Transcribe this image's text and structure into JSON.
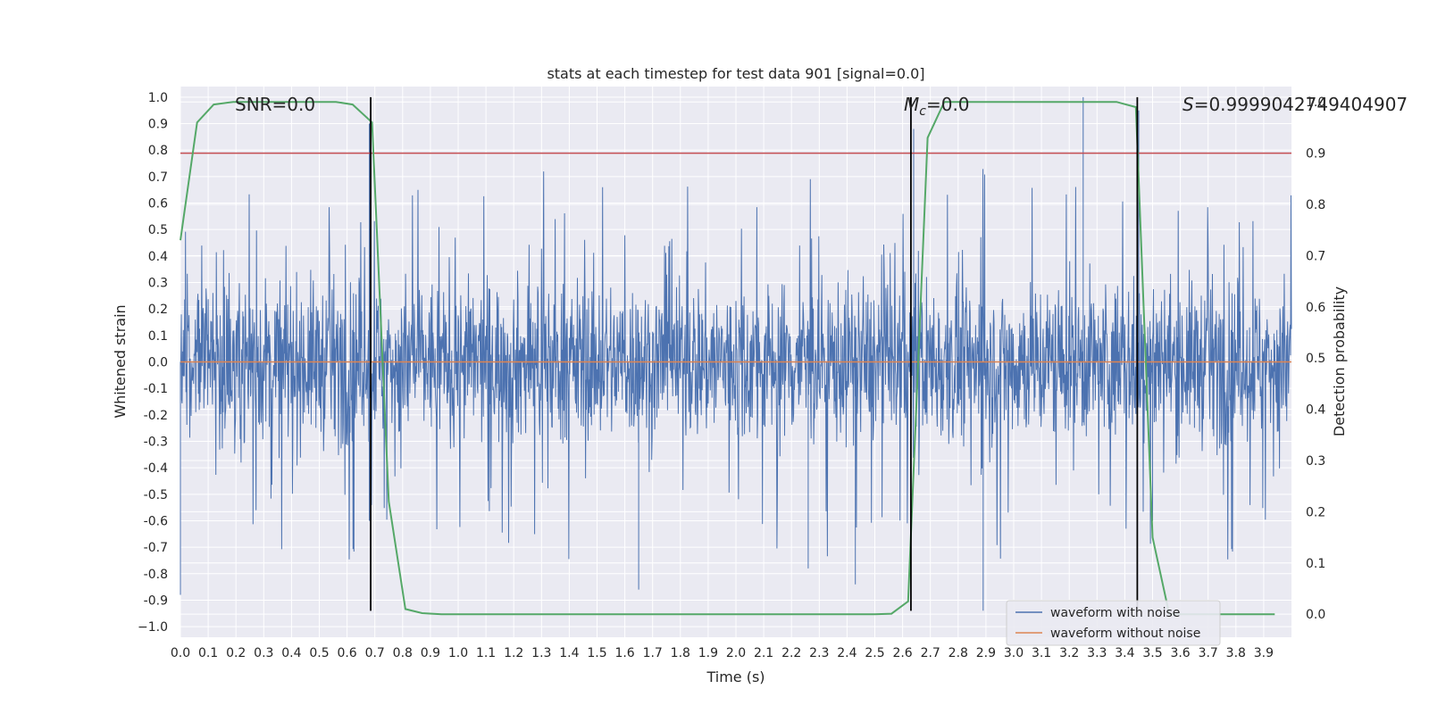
{
  "chart_data": {
    "type": "line",
    "title": "stats at each timestep for test data 901 [signal=0.0]",
    "xlabel": "Time (s)",
    "ylabel": "Whitened strain",
    "y2label": "Detection probability",
    "xlim": [
      0.0,
      4.0
    ],
    "ylim": [
      -1.04,
      1.04
    ],
    "y2lim": [
      -0.045,
      1.03
    ],
    "x_ticks": [
      "0.0",
      "0.1",
      "0.2",
      "0.3",
      "0.4",
      "0.5",
      "0.6",
      "0.7",
      "0.8",
      "0.9",
      "1.0",
      "1.1",
      "1.2",
      "1.3",
      "1.4",
      "1.5",
      "1.6",
      "1.7",
      "1.8",
      "1.9",
      "2.0",
      "2.1",
      "2.2",
      "2.3",
      "2.4",
      "2.5",
      "2.6",
      "2.7",
      "2.8",
      "2.9",
      "3.0",
      "3.1",
      "3.2",
      "3.3",
      "3.4",
      "3.5",
      "3.6",
      "3.7",
      "3.8",
      "3.9"
    ],
    "y_ticks": [
      "1.0",
      "0.9",
      "0.8",
      "0.7",
      "0.6",
      "0.5",
      "0.4",
      "0.3",
      "0.2",
      "0.1",
      "0.0",
      "-0.1",
      "-0.2",
      "-0.3",
      "-0.4",
      "-0.5",
      "-0.6",
      "-0.7",
      "-0.8",
      "-0.9",
      "−1.0"
    ],
    "y2_ticks": [
      "1.0",
      "0.9",
      "0.8",
      "0.7",
      "0.6",
      "0.5",
      "0.4",
      "0.3",
      "0.2",
      "0.1",
      "0.0"
    ],
    "grid": true,
    "legend_position": "lower-right",
    "series": [
      {
        "name": "waveform with noise",
        "axis": "left",
        "color": "#4c72b0",
        "style": "dense noise, amplitude mostly within ±0.4, spikes up to about ±0.95",
        "spikes": [
          {
            "x": 0.0,
            "y": -0.88
          },
          {
            "x": 0.68,
            "y": 0.9
          },
          {
            "x": 0.68,
            "y": -0.6
          },
          {
            "x": 1.65,
            "y": -0.86
          },
          {
            "x": 2.26,
            "y": -0.78
          },
          {
            "x": 2.43,
            "y": -0.84
          },
          {
            "x": 2.64,
            "y": 0.88
          },
          {
            "x": 2.89,
            "y": -0.94
          },
          {
            "x": 3.25,
            "y": 1.0
          },
          {
            "x": 3.45,
            "y": 0.95
          },
          {
            "x": 3.5,
            "y": -0.6
          }
        ]
      },
      {
        "name": "waveform without noise",
        "axis": "left",
        "color": "#dd8452",
        "x": [
          0.0,
          4.0
        ],
        "y": [
          0.0,
          0.0
        ]
      },
      {
        "name": "",
        "axis": "right",
        "color": "#55a868",
        "x": [
          0.0,
          0.06,
          0.12,
          0.19,
          0.25,
          0.31,
          0.37,
          0.44,
          0.5,
          0.56,
          0.62,
          0.69,
          0.75,
          0.81,
          0.87,
          0.94,
          1.0,
          1.5,
          2.0,
          2.5,
          2.56,
          2.62,
          2.69,
          2.75,
          2.81,
          2.87,
          3.0,
          3.2,
          3.37,
          3.44,
          3.5,
          3.56,
          3.62,
          3.69,
          3.75,
          3.81,
          3.87,
          3.94
        ],
        "y": [
          0.73,
          0.96,
          0.995,
          1.0,
          1.0,
          1.0,
          1.0,
          1.0,
          1.0,
          1.0,
          0.995,
          0.96,
          0.22,
          0.01,
          0.002,
          0.0,
          0.0,
          0.0,
          0.0,
          0.0,
          0.001,
          0.025,
          0.93,
          1.0,
          1.0,
          1.0,
          1.0,
          1.0,
          1.0,
          0.99,
          0.15,
          0.0,
          0.0,
          0.0,
          0.0,
          0.0,
          0.0,
          0.0
        ]
      }
    ],
    "hlines": [
      {
        "axis": "right",
        "y": 0.9,
        "color": "#c44e52"
      }
    ],
    "vlines": [
      {
        "x": 0.685,
        "y_from": -0.94,
        "y_to": 1.0
      },
      {
        "x": 2.63,
        "y_from": -0.94,
        "y_to": 1.0
      },
      {
        "x": 3.445,
        "y_from": -0.94,
        "y_to": 1.0
      }
    ],
    "annotations": [
      {
        "text": "SNR=0.0",
        "x": 0.2,
        "y": 1.0
      },
      {
        "text_prefix": "M",
        "text_sub": "c",
        "text_suffix": "=0.0",
        "x": 2.6,
        "y": 1.0
      },
      {
        "text_prefix": "S",
        "text_suffix": "=0.9999042749404907",
        "x": 3.6,
        "y": 1.0
      }
    ]
  }
}
